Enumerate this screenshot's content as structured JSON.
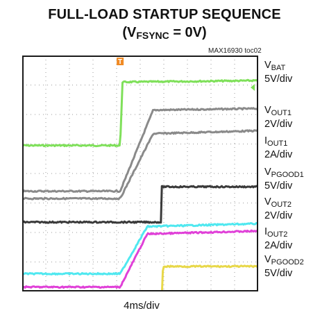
{
  "title": {
    "line1": "FULL-LOAD STARTUP SEQUENCE",
    "line2_prefix": "(V",
    "line2_sub": "FSYNC",
    "line2_suffix": " = 0V)"
  },
  "figure_id": "MAX16930 toc02",
  "x_label": "4ms/div",
  "trigger_marker": "T",
  "colors": {
    "grid": "#9a9a9a",
    "frame": "#1a1a1a",
    "trigger_marker": "#f08a24"
  },
  "channel_labels": [
    {
      "main": "V",
      "sub": "BAT",
      "scale": "5V/div"
    },
    {
      "main": "V",
      "sub": "OUT1",
      "scale": "2V/div"
    },
    {
      "main": "I",
      "sub": "OUT1",
      "scale": "2A/div"
    },
    {
      "main": "V",
      "sub": "PGOOD1",
      "scale": "5V/div"
    },
    {
      "main": "V",
      "sub": "OUT2",
      "scale": "2V/div"
    },
    {
      "main": "I",
      "sub": "OUT2",
      "scale": "2A/div"
    },
    {
      "main": "V",
      "sub": "PGOOD2",
      "scale": "5V/div"
    }
  ],
  "chart_data": {
    "type": "line",
    "title": "FULL-LOAD STARTUP SEQUENCE (VFSYNC = 0V)",
    "xlabel": "4ms/div",
    "x_unit": "div",
    "xlim": [
      0,
      10
    ],
    "ylim": [
      0,
      8
    ],
    "grid": true,
    "series": [
      {
        "name": "VBAT",
        "scale": "5V/div",
        "color": "#7fe05a",
        "x": [
          0,
          4.15,
          4.25,
          10
        ],
        "y": [
          4.95,
          4.95,
          7.1,
          7.15
        ]
      },
      {
        "name": "VOUT1",
        "scale": "2V/div",
        "color": "#8a8a8a",
        "x": [
          0,
          4.15,
          5.55,
          10
        ],
        "y": [
          3.4,
          3.4,
          6.15,
          6.2
        ]
      },
      {
        "name": "IOUT1",
        "scale": "2A/div",
        "color": "#8a8a8a",
        "x": [
          0,
          4.15,
          5.55,
          10
        ],
        "y": [
          3.15,
          3.15,
          5.35,
          5.45
        ]
      },
      {
        "name": "VPGOOD1",
        "scale": "5V/div",
        "color": "#3a3a3a",
        "x": [
          0,
          5.9,
          5.91,
          10
        ],
        "y": [
          2.35,
          2.35,
          3.55,
          3.55
        ]
      },
      {
        "name": "VOUT2",
        "scale": "2V/div",
        "color": "#4fe8f0",
        "x": [
          0,
          4.15,
          5.3,
          10
        ],
        "y": [
          0.6,
          0.6,
          2.2,
          2.3
        ]
      },
      {
        "name": "IOUT2",
        "scale": "2A/div",
        "color": "#e040d8",
        "x": [
          0,
          4.15,
          5.3,
          10
        ],
        "y": [
          0.15,
          0.15,
          1.95,
          2.05
        ]
      },
      {
        "name": "VPGOOD2",
        "scale": "5V/div",
        "color": "#e8d84a",
        "x": [
          0,
          5.95,
          5.96,
          10
        ],
        "y": [
          -0.15,
          -0.15,
          0.85,
          0.85
        ]
      }
    ]
  }
}
